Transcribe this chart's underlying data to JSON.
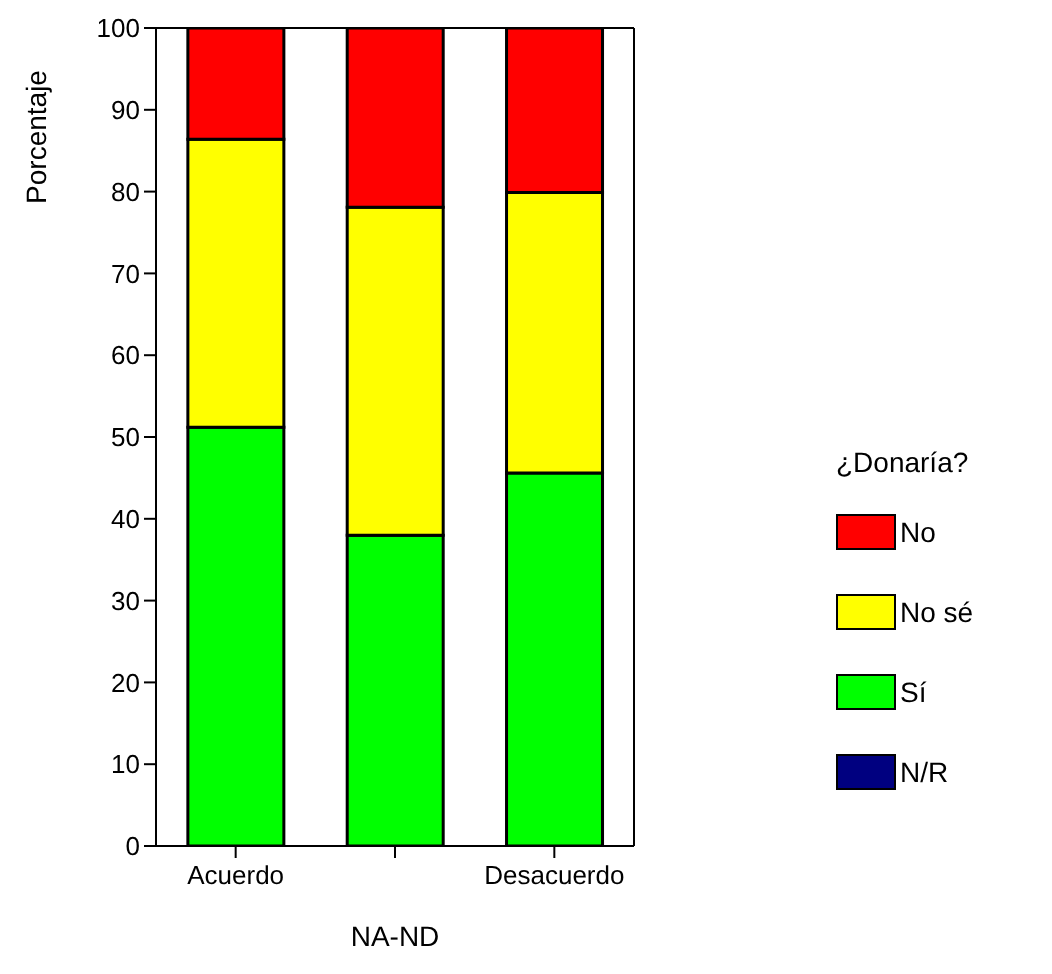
{
  "chart_data": {
    "type": "bar",
    "stacked": true,
    "xlabel": "NA-ND",
    "ylabel": "Porcentaje",
    "legend_title": "¿Donaría?",
    "legend": "right",
    "grid": false,
    "categories": [
      "Acuerdo",
      null,
      "Desacuerdo"
    ],
    "ylim": [
      0,
      100
    ],
    "yticks": [
      0,
      10,
      20,
      30,
      40,
      50,
      60,
      70,
      80,
      90,
      100
    ],
    "series": [
      {
        "name": "N/R",
        "color": "#000080",
        "values": [
          0,
          0,
          0
        ]
      },
      {
        "name": "Sí",
        "color": "#00ff00",
        "values": [
          51.2,
          38,
          45.6
        ]
      },
      {
        "name": "No sé",
        "color": "#ffff00",
        "values": [
          35.2,
          40.1,
          34.3
        ]
      },
      {
        "name": "No",
        "color": "#ff0000",
        "values": [
          13.6,
          21.9,
          20.1
        ]
      }
    ]
  }
}
